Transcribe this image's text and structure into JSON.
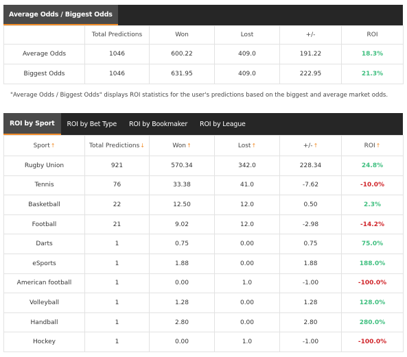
{
  "top_tabs": [
    {
      "label": "Average Odds / Biggest Odds",
      "active": true
    }
  ],
  "odds_table": {
    "headers": [
      "",
      "Total Predictions",
      "Won",
      "Lost",
      "+/-",
      "ROI"
    ],
    "rows": [
      {
        "label": "Average Odds",
        "total": "1046",
        "won": "600.22",
        "lost": "409.0",
        "pm": "191.22",
        "roi": "18.3%"
      },
      {
        "label": "Biggest Odds",
        "total": "1046",
        "won": "631.95",
        "lost": "409.0",
        "pm": "222.95",
        "roi": "21.3%"
      }
    ]
  },
  "note": "\"Average Odds / Biggest Odds\" displays ROI statistics for the user's predictions based on the biggest and average market odds.",
  "roi_tabs": [
    {
      "label": "ROI by Sport",
      "active": true
    },
    {
      "label": "ROI by Bet Type",
      "active": false
    },
    {
      "label": "ROI by Bookmaker",
      "active": false
    },
    {
      "label": "ROI by League",
      "active": false
    }
  ],
  "sport_table": {
    "headers": [
      {
        "label": "Sport",
        "arrow": "↑"
      },
      {
        "label": "Total Predictions",
        "arrow": "↓"
      },
      {
        "label": "Won",
        "arrow": "↑"
      },
      {
        "label": "Lost",
        "arrow": "↑"
      },
      {
        "label": "+/-",
        "arrow": "↑"
      },
      {
        "label": "ROI",
        "arrow": "↑"
      }
    ],
    "rows": [
      {
        "sport": "Rugby Union",
        "total": "921",
        "won": "570.34",
        "lost": "342.0",
        "pm": "228.34",
        "roi": "24.8%",
        "roi_sign": "pos"
      },
      {
        "sport": "Tennis",
        "total": "76",
        "won": "33.38",
        "lost": "41.0",
        "pm": "-7.62",
        "roi": "-10.0%",
        "roi_sign": "neg"
      },
      {
        "sport": "Basketball",
        "total": "22",
        "won": "12.50",
        "lost": "12.0",
        "pm": "0.50",
        "roi": "2.3%",
        "roi_sign": "pos"
      },
      {
        "sport": "Football",
        "total": "21",
        "won": "9.02",
        "lost": "12.0",
        "pm": "-2.98",
        "roi": "-14.2%",
        "roi_sign": "neg"
      },
      {
        "sport": "Darts",
        "total": "1",
        "won": "0.75",
        "lost": "0.00",
        "pm": "0.75",
        "roi": "75.0%",
        "roi_sign": "pos"
      },
      {
        "sport": "eSports",
        "total": "1",
        "won": "1.88",
        "lost": "0.00",
        "pm": "1.88",
        "roi": "188.0%",
        "roi_sign": "pos"
      },
      {
        "sport": "American football",
        "total": "1",
        "won": "0.00",
        "lost": "1.0",
        "pm": "-1.00",
        "roi": "-100.0%",
        "roi_sign": "neg"
      },
      {
        "sport": "Volleyball",
        "total": "1",
        "won": "1.28",
        "lost": "0.00",
        "pm": "1.28",
        "roi": "128.0%",
        "roi_sign": "pos"
      },
      {
        "sport": "Handball",
        "total": "1",
        "won": "2.80",
        "lost": "0.00",
        "pm": "2.80",
        "roi": "280.0%",
        "roi_sign": "pos"
      },
      {
        "sport": "Hockey",
        "total": "1",
        "won": "0.00",
        "lost": "1.0",
        "pm": "-1.00",
        "roi": "-100.0%",
        "roi_sign": "neg"
      }
    ]
  },
  "colors": {
    "positive": "#3fbf7f",
    "negative": "#d0262b",
    "accent": "#f28c28",
    "tabbar": "#262626"
  }
}
